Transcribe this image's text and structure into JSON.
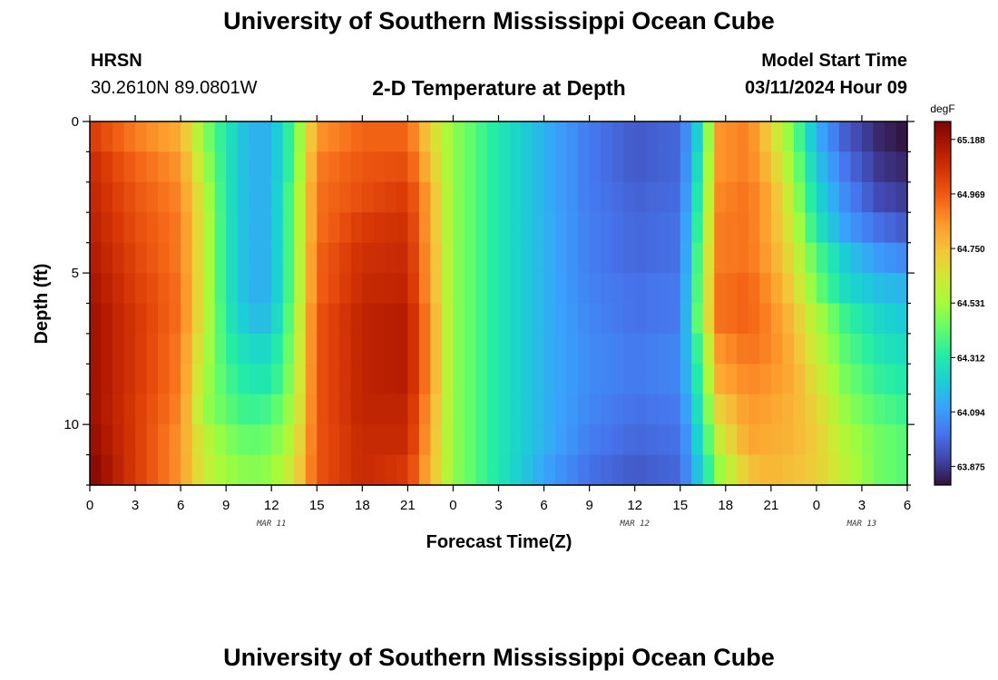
{
  "page": {
    "title": "University of Southern Mississippi Ocean Cube",
    "footer_title": "University of Southern Mississippi Ocean Cube",
    "station_id": "HRSN",
    "station_coords": "30.2610N  89.0801W",
    "plot_title": "2-D Temperature at Depth",
    "model_start_label": "Model Start Time",
    "model_start_value": "03/11/2024 Hour 09"
  },
  "chart_data": {
    "type": "heatmap",
    "title": "2-D Temperature at Depth",
    "xlabel": "Forecast Time(Z)",
    "ylabel": "Depth (ft)",
    "x_start_hour": 0,
    "x_end_hour": 54,
    "x_tick_labels": [
      "0",
      "3",
      "6",
      "9",
      "12",
      "15",
      "18",
      "21",
      "0",
      "3",
      "6",
      "9",
      "12",
      "15",
      "18",
      "21",
      "0",
      "3",
      "6"
    ],
    "date_labels": [
      {
        "label": "MAR 11",
        "hour": 12
      },
      {
        "label": "MAR 12",
        "hour": 36
      },
      {
        "label": "MAR 13",
        "hour": 51
      }
    ],
    "ylim": [
      0,
      12
    ],
    "y_tick_labels": [
      "0",
      "5",
      "10"
    ],
    "y_tick_values": [
      0,
      5,
      10
    ],
    "colorbar": {
      "unit": "degF",
      "min": 63.8,
      "max": 65.26,
      "tick_labels": [
        "65.188",
        "64.969",
        "64.750",
        "64.531",
        "64.312",
        "64.094",
        "63.875"
      ],
      "tick_values": [
        65.188,
        64.969,
        64.75,
        64.531,
        64.312,
        64.094,
        63.875
      ],
      "colors": [
        "#30123b",
        "#4145ab",
        "#4675ed",
        "#39a2fc",
        "#1bcfd4",
        "#24eca6",
        "#61fc6c",
        "#a4fc3b",
        "#d1e834",
        "#f3c63a",
        "#fe9b2d",
        "#f36315",
        "#d93806",
        "#b11901",
        "#7a0402"
      ]
    },
    "depths_ft": [
      0.5,
      1.5,
      2.5,
      3.5,
      4.5,
      5.5,
      6.5,
      7.5,
      8.5,
      9.5,
      10.5,
      11.5
    ],
    "hours": [
      0,
      3,
      6,
      7.5,
      9,
      10.5,
      12,
      13.5,
      15,
      18,
      21,
      22.5,
      24,
      27,
      30,
      33,
      36,
      39,
      40.5,
      41.5,
      43.5,
      45,
      46.5,
      48,
      50,
      52,
      54
    ],
    "values_degF": [
      [
        65.05,
        64.9,
        64.8,
        64.5,
        64.3,
        64.15,
        64.15,
        64.4,
        64.85,
        64.95,
        64.95,
        64.7,
        64.5,
        64.3,
        64.15,
        64.02,
        63.95,
        63.98,
        64.3,
        64.85,
        64.9,
        64.7,
        64.45,
        64.15,
        63.95,
        63.85,
        63.8
      ],
      [
        65.1,
        64.95,
        64.85,
        64.55,
        64.3,
        64.15,
        64.15,
        64.4,
        64.9,
        64.98,
        65.0,
        64.75,
        64.5,
        64.3,
        64.15,
        64.02,
        63.95,
        63.98,
        64.35,
        64.85,
        64.9,
        64.75,
        64.5,
        64.2,
        64.0,
        63.88,
        63.84
      ],
      [
        65.12,
        64.98,
        64.88,
        64.6,
        64.3,
        64.15,
        64.15,
        64.45,
        64.92,
        65.0,
        65.05,
        64.8,
        64.5,
        64.3,
        64.15,
        64.02,
        63.97,
        63.99,
        64.4,
        64.88,
        64.92,
        64.8,
        64.55,
        64.25,
        64.05,
        63.92,
        63.88
      ],
      [
        65.14,
        65.0,
        64.9,
        64.62,
        64.3,
        64.15,
        64.15,
        64.45,
        64.92,
        65.05,
        65.08,
        64.8,
        64.5,
        64.3,
        64.15,
        64.03,
        63.98,
        64.0,
        64.45,
        64.9,
        64.92,
        64.8,
        64.6,
        64.3,
        64.1,
        64.0,
        63.95
      ],
      [
        65.16,
        65.02,
        64.9,
        64.62,
        64.3,
        64.15,
        64.15,
        64.45,
        64.95,
        65.08,
        65.1,
        64.82,
        64.5,
        64.3,
        64.15,
        64.03,
        63.98,
        64.0,
        64.5,
        64.9,
        64.92,
        64.82,
        64.65,
        64.4,
        64.2,
        64.1,
        64.05
      ],
      [
        65.18,
        65.04,
        64.92,
        64.62,
        64.3,
        64.15,
        64.15,
        64.45,
        64.95,
        65.1,
        65.12,
        64.82,
        64.5,
        64.3,
        64.15,
        64.04,
        64.0,
        64.02,
        64.52,
        64.92,
        64.95,
        64.85,
        64.7,
        64.45,
        64.25,
        64.18,
        64.15
      ],
      [
        65.2,
        65.06,
        64.92,
        64.62,
        64.32,
        64.18,
        64.18,
        64.48,
        64.98,
        65.12,
        65.15,
        64.85,
        64.5,
        64.3,
        64.15,
        64.05,
        64.0,
        64.02,
        64.55,
        64.92,
        64.95,
        64.88,
        64.75,
        64.55,
        64.35,
        64.25,
        64.2
      ],
      [
        65.2,
        65.06,
        64.9,
        64.58,
        64.35,
        64.25,
        64.25,
        64.5,
        64.98,
        65.12,
        65.15,
        64.85,
        64.5,
        64.3,
        64.15,
        64.06,
        64.02,
        64.05,
        64.45,
        64.85,
        64.92,
        64.88,
        64.78,
        64.6,
        64.4,
        64.3,
        64.25
      ],
      [
        65.2,
        65.06,
        64.9,
        64.55,
        64.38,
        64.3,
        64.3,
        64.52,
        64.98,
        65.12,
        65.15,
        64.85,
        64.5,
        64.3,
        64.15,
        64.06,
        64.02,
        64.05,
        64.4,
        64.8,
        64.88,
        64.85,
        64.8,
        64.65,
        64.45,
        64.35,
        64.3
      ],
      [
        65.2,
        65.05,
        64.88,
        64.52,
        64.42,
        64.35,
        64.38,
        64.55,
        64.98,
        65.12,
        65.12,
        64.82,
        64.5,
        64.3,
        64.15,
        64.05,
        64.0,
        64.02,
        64.35,
        64.7,
        64.85,
        64.82,
        64.78,
        64.7,
        64.5,
        64.4,
        64.35
      ],
      [
        65.22,
        65.05,
        64.85,
        64.6,
        64.48,
        64.42,
        64.45,
        64.6,
        64.98,
        65.1,
        65.1,
        64.8,
        64.5,
        64.3,
        64.15,
        64.03,
        63.98,
        64.0,
        64.3,
        64.6,
        64.82,
        64.8,
        64.78,
        64.72,
        64.55,
        64.45,
        64.4
      ],
      [
        65.25,
        65.05,
        64.85,
        64.62,
        64.52,
        64.48,
        64.5,
        64.65,
        64.98,
        65.1,
        65.05,
        64.78,
        64.5,
        64.3,
        64.12,
        64.0,
        63.95,
        63.98,
        64.25,
        64.5,
        64.75,
        64.78,
        64.75,
        64.72,
        64.58,
        64.45,
        64.4
      ]
    ]
  }
}
